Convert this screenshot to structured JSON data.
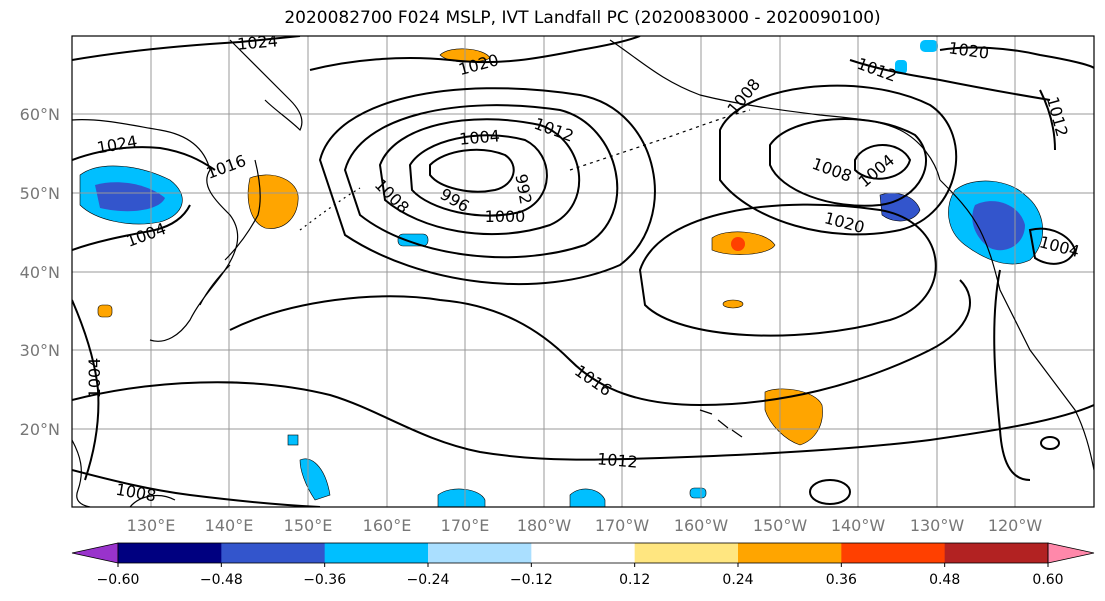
{
  "title": "2020082700 F024 MSLP, IVT Landfall PC (2020083000 - 2020090100)",
  "lat_labels": [
    "60°N",
    "50°N",
    "40°N",
    "30°N",
    "20°N"
  ],
  "lon_labels": [
    "130°E",
    "140°E",
    "150°E",
    "160°E",
    "170°E",
    "180°W",
    "170°W",
    "160°W",
    "150°W",
    "140°W",
    "130°W",
    "120°W"
  ],
  "contour_labels": [
    "1024",
    "1020",
    "1012",
    "1008",
    "1020",
    "1012",
    "1024",
    "1016",
    "1004",
    "1012",
    "1004",
    "1008",
    "996",
    "992",
    "1000",
    "1008",
    "1004",
    "1020",
    "1004",
    "1004",
    "1016",
    "1012",
    "1008"
  ],
  "colorbar": {
    "ticks": [
      "−0.60",
      "−0.48",
      "−0.36",
      "−0.24",
      "−0.12",
      "0.12",
      "0.24",
      "0.36",
      "0.48",
      "0.60"
    ],
    "colors": [
      "#9933cc",
      "#000080",
      "#3355cc",
      "#00bfff",
      "#aadfff",
      "#ffffff",
      "#ffe680",
      "#ffa500",
      "#ff4000",
      "#b22222",
      "#ff88aa"
    ]
  }
}
